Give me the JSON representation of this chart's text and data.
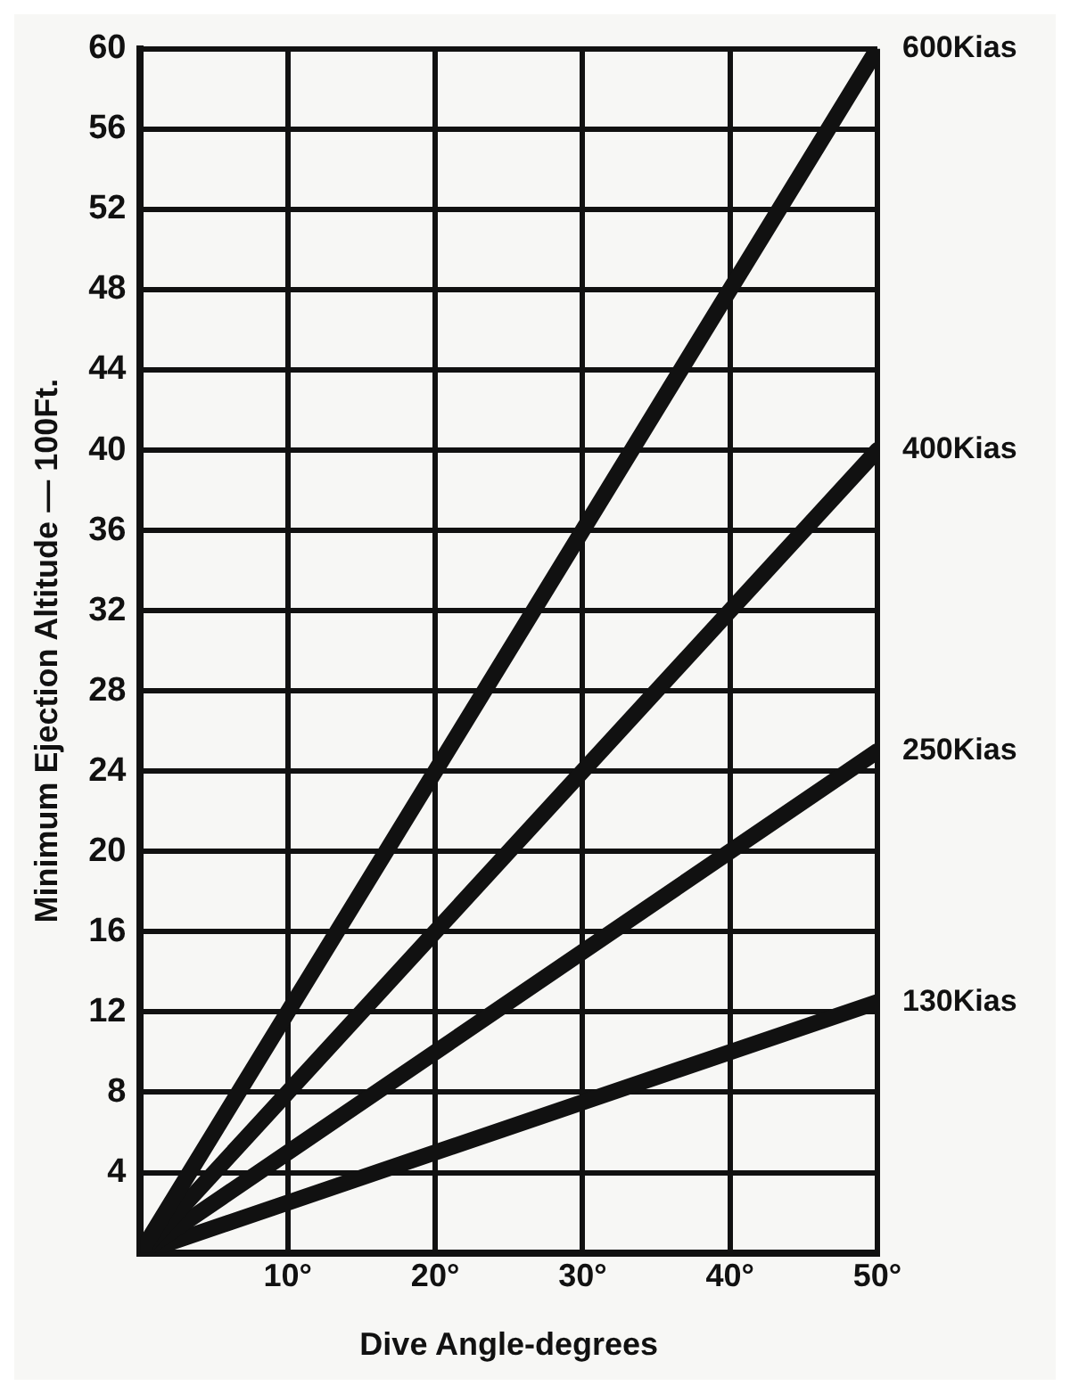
{
  "chart_data": {
    "type": "line",
    "xlabel": "Dive Angle-degrees",
    "ylabel": "Minimum Ejection Altitude — 100Ft.",
    "xlim": [
      0,
      50
    ],
    "xticks": [
      {
        "value": 0,
        "label": null
      },
      {
        "value": 10,
        "label": "10°"
      },
      {
        "value": 20,
        "label": "20°"
      },
      {
        "value": 30,
        "label": "30°"
      },
      {
        "value": 40,
        "label": "40°"
      },
      {
        "value": 50,
        "label": "50°"
      }
    ],
    "ylim": [
      0,
      60
    ],
    "yticks": [
      {
        "value": 0,
        "label": null
      },
      4,
      8,
      12,
      16,
      20,
      24,
      28,
      32,
      36,
      40,
      44,
      48,
      52,
      56,
      60
    ],
    "x": [
      0,
      50
    ],
    "grid": true,
    "legend": false,
    "marker": "none",
    "line_style": "solid",
    "series": [
      {
        "name": "600Kias",
        "color": "#111111",
        "values": [
          0,
          60
        ]
      },
      {
        "name": "400Kias",
        "color": "#111111",
        "values": [
          0,
          40
        ]
      },
      {
        "name": "250Kias",
        "color": "#111111",
        "values": [
          0,
          25
        ]
      },
      {
        "name": "130Kias",
        "color": "#111111",
        "values": [
          0,
          12.5
        ]
      }
    ]
  }
}
